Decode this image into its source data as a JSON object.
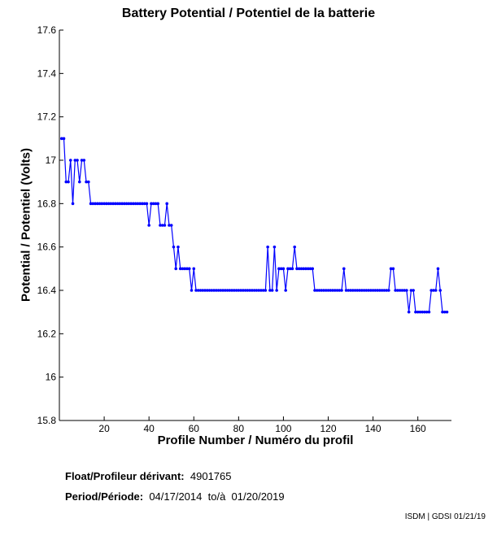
{
  "chart_data": {
    "type": "line",
    "title": "Battery Potential / Potentiel de la batterie",
    "xlabel": "Profile Number / Numéro du profil",
    "ylabel": "Potential / Potentiel (Volts)",
    "xlim": [
      0,
      175
    ],
    "ylim": [
      15.8,
      17.6
    ],
    "xticks": [
      20,
      40,
      60,
      80,
      100,
      120,
      140,
      160
    ],
    "yticks": [
      "15.8",
      "16",
      "16.2",
      "16.4",
      "16.6",
      "16.8",
      "17",
      "17.2",
      "17.4",
      "17.6"
    ],
    "grid": false,
    "series": [
      {
        "name": "Battery Potential",
        "color": "#0000ff",
        "values": [
          17.1,
          17.1,
          16.9,
          16.9,
          17.0,
          16.8,
          17.0,
          17.0,
          16.9,
          17.0,
          17.0,
          16.9,
          16.9,
          16.8,
          16.8,
          16.8,
          16.8,
          16.8,
          16.8,
          16.8,
          16.8,
          16.8,
          16.8,
          16.8,
          16.8,
          16.8,
          16.8,
          16.8,
          16.8,
          16.8,
          16.8,
          16.8,
          16.8,
          16.8,
          16.8,
          16.8,
          16.8,
          16.8,
          16.8,
          16.7,
          16.8,
          16.8,
          16.8,
          16.8,
          16.7,
          16.7,
          16.7,
          16.8,
          16.7,
          16.7,
          16.6,
          16.5,
          16.6,
          16.5,
          16.5,
          16.5,
          16.5,
          16.5,
          16.4,
          16.5,
          16.4,
          16.4,
          16.4,
          16.4,
          16.4,
          16.4,
          16.4,
          16.4,
          16.4,
          16.4,
          16.4,
          16.4,
          16.4,
          16.4,
          16.4,
          16.4,
          16.4,
          16.4,
          16.4,
          16.4,
          16.4,
          16.4,
          16.4,
          16.4,
          16.4,
          16.4,
          16.4,
          16.4,
          16.4,
          16.4,
          16.4,
          16.4,
          16.6,
          16.4,
          16.4,
          16.6,
          16.4,
          16.5,
          16.5,
          16.5,
          16.4,
          16.5,
          16.5,
          16.5,
          16.6,
          16.5,
          16.5,
          16.5,
          16.5,
          16.5,
          16.5,
          16.5,
          16.5,
          16.4,
          16.4,
          16.4,
          16.4,
          16.4,
          16.4,
          16.4,
          16.4,
          16.4,
          16.4,
          16.4,
          16.4,
          16.4,
          16.5,
          16.4,
          16.4,
          16.4,
          16.4,
          16.4,
          16.4,
          16.4,
          16.4,
          16.4,
          16.4,
          16.4,
          16.4,
          16.4,
          16.4,
          16.4,
          16.4,
          16.4,
          16.4,
          16.4,
          16.4,
          16.5,
          16.5,
          16.4,
          16.4,
          16.4,
          16.4,
          16.4,
          16.4,
          16.3,
          16.4,
          16.4,
          16.3,
          16.3,
          16.3,
          16.3,
          16.3,
          16.3,
          16.3,
          16.4,
          16.4,
          16.4,
          16.5,
          16.4,
          16.3,
          16.3,
          16.3
        ]
      }
    ]
  },
  "info": {
    "float_label": "Float/Profileur dérivant:",
    "float_id": "4901765",
    "period_label": "Period/Période:",
    "start": "04/17/2014",
    "to": "to/à",
    "end": "01/20/2019",
    "stamp": "ISDM | GDSI 01/21/19"
  }
}
